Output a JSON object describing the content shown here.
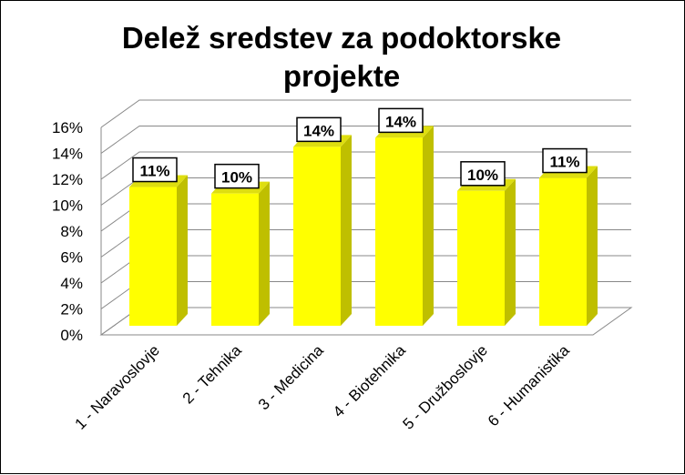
{
  "chart_data": {
    "type": "bar",
    "title_lines": [
      "Delež sredstev za podoktorske",
      "projekte"
    ],
    "categories": [
      "1 - Naravoslovje",
      "2 - Tehnika",
      "3 - Medicina",
      "4 - Biotehnika",
      "5 - Družboslovje",
      "6 - Humanistika"
    ],
    "values": [
      10.7,
      10.2,
      13.8,
      14.5,
      10.4,
      11.4
    ],
    "data_labels": [
      "11%",
      "10%",
      "14%",
      "14%",
      "10%",
      "11%"
    ],
    "y_ticks": [
      "0%",
      "2%",
      "4%",
      "6%",
      "8%",
      "10%",
      "12%",
      "14%",
      "16%"
    ],
    "ylim": [
      0,
      16
    ],
    "y_unit": "%",
    "grid": true,
    "legend": "none",
    "style": "3d-column",
    "bar_color": "#FFFF00",
    "bar_side_color": "#BFBF00",
    "bar_top_color": "#DEDE10"
  }
}
